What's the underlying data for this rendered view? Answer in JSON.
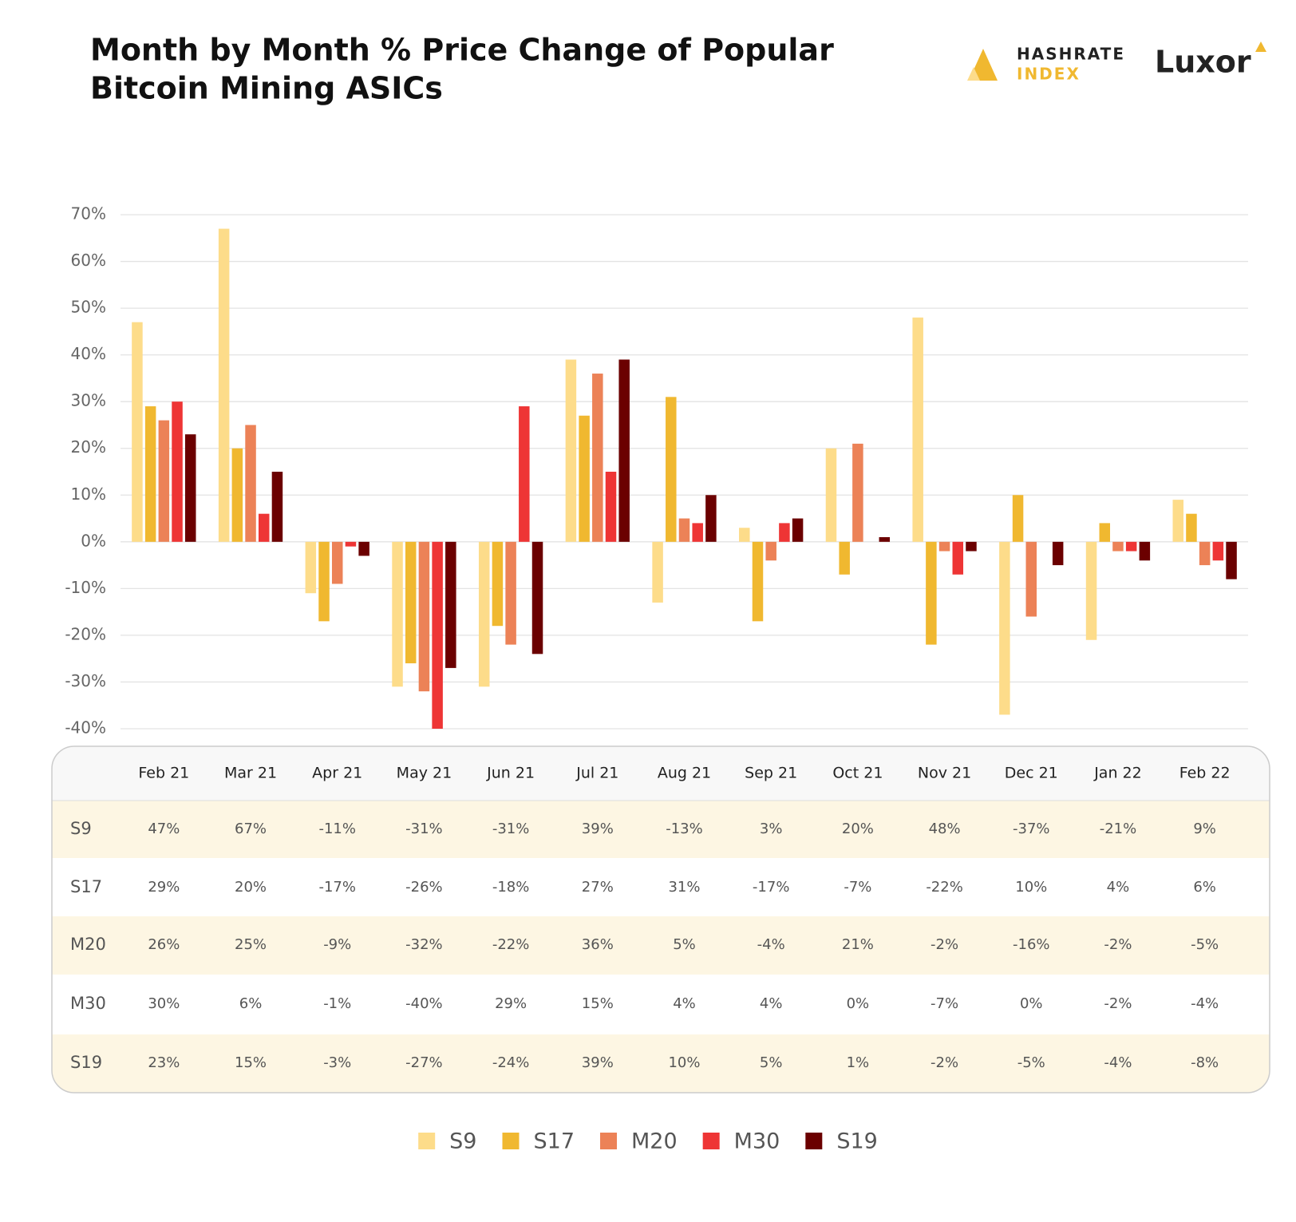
{
  "chart_data": {
    "type": "bar",
    "title": [
      "Month by Month % Price Change of Popular",
      "Bitcoin Mining ASICs"
    ],
    "logos": {
      "hashrate": [
        "HASHRATE",
        "INDEX"
      ],
      "luxor": "Luxor"
    },
    "categories": [
      "Feb 21",
      "Mar 21",
      "Apr 21",
      "May 21",
      "Jun 21",
      "Jul 21",
      "Aug 21",
      "Sep 21",
      "Oct 21",
      "Nov 21",
      "Dec 21",
      "Jan 22",
      "Feb 22"
    ],
    "series": [
      {
        "name": "S9",
        "color": "#fddc8a",
        "values": [
          47,
          67,
          -11,
          -31,
          -31,
          39,
          -13,
          3,
          20,
          48,
          -37,
          -21,
          9
        ],
        "value_labels": [
          "47%",
          "67%",
          "-11%",
          "-31%",
          "-31%",
          "39%",
          "-13%",
          "3%",
          "20%",
          "48%",
          "-37%",
          "-21%",
          "9%"
        ]
      },
      {
        "name": "S17",
        "color": "#f0b830",
        "values": [
          29,
          20,
          -17,
          -26,
          -18,
          27,
          31,
          -17,
          -7,
          -22,
          10,
          4,
          6
        ],
        "value_labels": [
          "29%",
          "20%",
          "-17%",
          "-26%",
          "-18%",
          "27%",
          "31%",
          "-17%",
          "-7%",
          "-22%",
          "10%",
          "4%",
          "6%"
        ]
      },
      {
        "name": "M20",
        "color": "#ec8257",
        "values": [
          26,
          25,
          -9,
          -32,
          -22,
          36,
          5,
          -4,
          21,
          -2,
          -16,
          -2,
          -5
        ],
        "value_labels": [
          "26%",
          "25%",
          "-9%",
          "-32%",
          "-22%",
          "36%",
          "5%",
          "-4%",
          "21%",
          "-2%",
          "-16%",
          "-2%",
          "-5%"
        ]
      },
      {
        "name": "M30",
        "color": "#ee3535",
        "values": [
          30,
          6,
          -1,
          -40,
          29,
          15,
          4,
          4,
          0,
          -7,
          0,
          -2,
          -4
        ],
        "value_labels": [
          "30%",
          "6%",
          "-1%",
          "-40%",
          "29%",
          "15%",
          "4%",
          "4%",
          "0%",
          "-7%",
          "0%",
          "-2%",
          "-4%"
        ]
      },
      {
        "name": "S19",
        "color": "#6b0000",
        "values": [
          23,
          15,
          -3,
          -27,
          -24,
          39,
          10,
          5,
          1,
          -2,
          -5,
          -4,
          -8
        ],
        "value_labels": [
          "23%",
          "15%",
          "-3%",
          "-27%",
          "-24%",
          "39%",
          "10%",
          "5%",
          "1%",
          "-2%",
          "-5%",
          "-4%",
          "-8%"
        ]
      }
    ],
    "ylim": [
      -40,
      70
    ],
    "yticks": [
      {
        "value": -40,
        "label": "-40%"
      },
      {
        "value": -30,
        "label": "-30%"
      },
      {
        "value": -20,
        "label": "-20%"
      },
      {
        "value": -10,
        "label": "-10%"
      },
      {
        "value": 0,
        "label": "0%"
      },
      {
        "value": 10,
        "label": "10%"
      },
      {
        "value": 20,
        "label": "20%"
      },
      {
        "value": 30,
        "label": "30%"
      },
      {
        "value": 40,
        "label": "40%"
      },
      {
        "value": 50,
        "label": "50%"
      },
      {
        "value": 60,
        "label": "60%"
      },
      {
        "value": 70,
        "label": "70%"
      }
    ],
    "grid": true,
    "legend": "bottom"
  }
}
